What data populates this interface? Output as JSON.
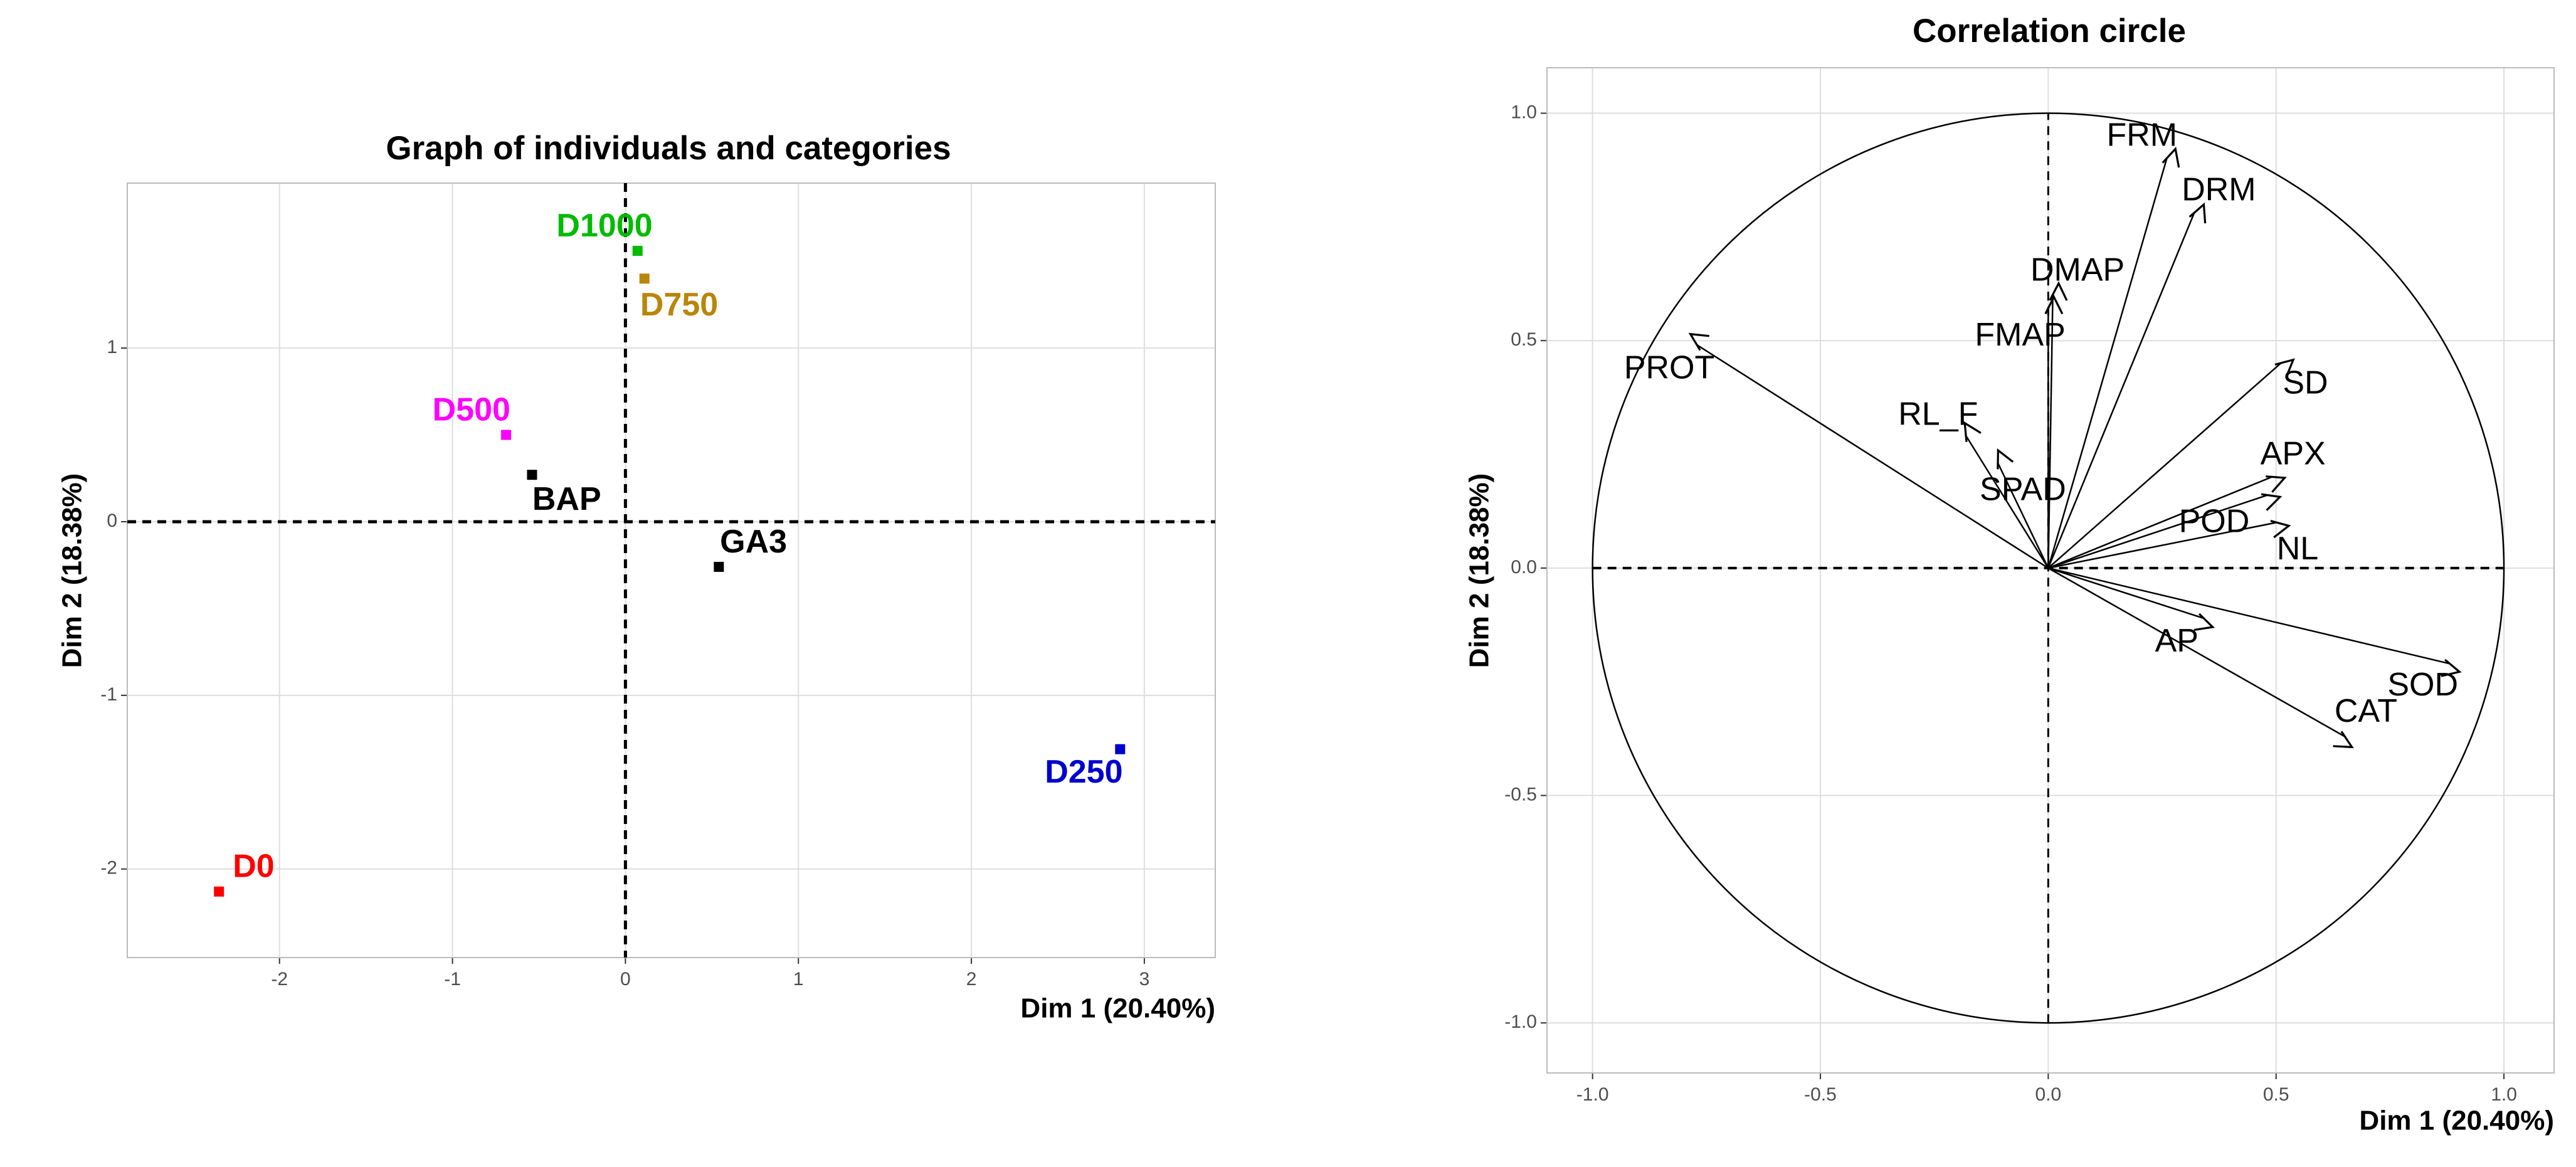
{
  "chart_data": [
    {
      "type": "scatter",
      "title": "Graph of individuals and categories",
      "xlabel": "Dim 1 (20.40%)",
      "ylabel": "Dim 2 (18.38%)",
      "labels": [
        "D0",
        "D250",
        "D500",
        "D750",
        "D1000",
        "BAP",
        "GA3"
      ],
      "x": [
        -2.35,
        2.86,
        -0.69,
        0.11,
        0.07,
        -0.54,
        0.54
      ],
      "values": [
        -2.13,
        -1.31,
        0.5,
        1.4,
        1.56,
        0.27,
        -0.26
      ],
      "colors": [
        "#ff0000",
        "#0000cd",
        "#ff00ff",
        "#b8860b",
        "#00bb00",
        "#000000",
        "#000000"
      ],
      "xlim": [
        -2.88,
        3.41
      ],
      "ylim": [
        -2.51,
        1.95
      ],
      "xticks": [
        -2,
        -1,
        0,
        1,
        2,
        3
      ],
      "yticks": [
        -2,
        -1,
        0,
        1
      ],
      "grid": true
    },
    {
      "type": "arrow",
      "title": "Correlation circle",
      "xlabel": "Dim 1 (20.40%)",
      "ylabel": "Dim 2 (18.38%)",
      "labels": [
        "FRM",
        "DRM",
        "DMAP",
        "FMAP",
        "PROT",
        "SD",
        "APX",
        "POD",
        "NL",
        "RL_F",
        "SPAD",
        "AP",
        "SOD",
        "CAT"
      ],
      "x": [
        0.26,
        0.32,
        0.01,
        0.0,
        -0.77,
        0.51,
        0.49,
        0.48,
        0.5,
        -0.18,
        -0.11,
        0.34,
        0.88,
        0.65
      ],
      "values": [
        0.9,
        0.78,
        0.6,
        0.57,
        0.49,
        0.45,
        0.2,
        0.16,
        0.1,
        0.29,
        0.23,
        -0.11,
        -0.21,
        -0.37
      ],
      "color": "#000000",
      "xlim": [
        -1.1,
        1.11
      ],
      "ylim": [
        -1.11,
        1.1
      ],
      "xticks": [
        {
          "value": -1,
          "label": "-1.0"
        },
        -0.5,
        {
          "value": 0,
          "label": "0.0"
        },
        0.5,
        {
          "value": 1,
          "label": "1.0"
        }
      ],
      "yticks": [
        {
          "value": -1,
          "label": "-1.0"
        },
        -0.5,
        {
          "value": 0,
          "label": "0.0"
        },
        0.5,
        {
          "value": 1,
          "label": "1.0"
        }
      ],
      "grid": true
    }
  ]
}
